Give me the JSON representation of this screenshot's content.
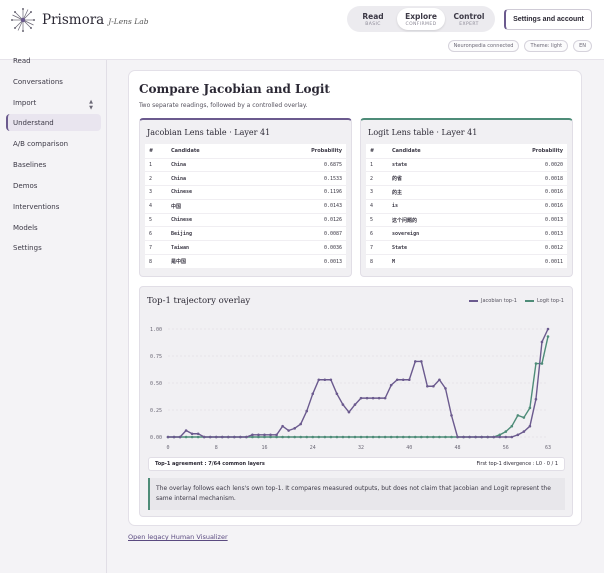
{
  "app": {
    "brand": "Prismora",
    "brand_sub": "J-Lens Lab"
  },
  "modes": [
    {
      "label": "Read",
      "sub": "BASIC",
      "active": false
    },
    {
      "label": "Explore",
      "sub": "CONFIRMED",
      "active": true
    },
    {
      "label": "Control",
      "sub": "EXPERT",
      "active": false
    }
  ],
  "settings_label": "Settings and account",
  "status_chips": [
    "Neuronpedia connected",
    "Theme: light",
    "EN"
  ],
  "sidebar": {
    "items": [
      {
        "label": "Read"
      },
      {
        "label": "Conversations"
      },
      {
        "label": "Import"
      },
      {
        "label": "Understand",
        "active": true
      },
      {
        "label": "A/B comparison"
      },
      {
        "label": "Baselines"
      },
      {
        "label": "Demos"
      },
      {
        "label": "Interventions"
      },
      {
        "label": "Models"
      },
      {
        "label": "Settings"
      }
    ]
  },
  "main": {
    "title": "Compare Jacobian and Logit",
    "subtitle": "Two separate readings, followed by a controlled overlay.",
    "jacobian_table": {
      "title": "Jacobian Lens table · Layer 41",
      "headers": [
        "#",
        "Candidate",
        "Probability"
      ],
      "rows": [
        [
          "1",
          "China",
          "0.6875"
        ],
        [
          "2",
          "China",
          "0.1533"
        ],
        [
          "3",
          "Chinese",
          "0.1196"
        ],
        [
          "4",
          "中国",
          "0.0143"
        ],
        [
          "5",
          "Chinese",
          "0.0126"
        ],
        [
          "6",
          "Beijing",
          "0.0087"
        ],
        [
          "7",
          "Taiwan",
          "0.0036"
        ],
        [
          "8",
          "是中国",
          "0.0013"
        ]
      ]
    },
    "logit_table": {
      "title": "Logit Lens table · Layer 41",
      "headers": [
        "#",
        "Candidate",
        "Probability"
      ],
      "rows": [
        [
          "1",
          "state",
          "0.0020"
        ],
        [
          "2",
          "的省",
          "0.0018"
        ],
        [
          "3",
          "的主",
          "0.0016"
        ],
        [
          "4",
          "is",
          "0.0016"
        ],
        [
          "5",
          "这个问题的",
          "0.0013"
        ],
        [
          "6",
          "sovereign",
          "0.0013"
        ],
        [
          "7",
          "State",
          "0.0012"
        ],
        [
          "8",
          "M",
          "0.0011"
        ]
      ]
    },
    "chart": {
      "title": "Top-1 trajectory overlay",
      "agreement": "Top-1 agreement : 7/64 common layers",
      "divergence": "First top-1 divergence : L0 · 0 / 1",
      "note": "The overlay follows each lens's own top-1. It compares measured outputs, but does not claim that Jacobian and Logit represent the same internal mechanism."
    },
    "legacy_link": "Open legacy Human Visualizer"
  },
  "chart_data": {
    "type": "line",
    "title": "Top-1 trajectory overlay",
    "x": [
      0,
      1,
      2,
      3,
      4,
      5,
      6,
      7,
      8,
      9,
      10,
      11,
      12,
      13,
      14,
      15,
      16,
      17,
      18,
      19,
      20,
      21,
      22,
      23,
      24,
      25,
      26,
      27,
      28,
      29,
      30,
      31,
      32,
      33,
      34,
      35,
      36,
      37,
      38,
      39,
      40,
      41,
      42,
      43,
      44,
      45,
      46,
      47,
      48,
      49,
      50,
      51,
      52,
      53,
      54,
      55,
      56,
      57,
      58,
      59,
      60,
      61,
      62,
      63
    ],
    "xticks": [
      0,
      8,
      16,
      24,
      32,
      40,
      48,
      56,
      63
    ],
    "yticks": [
      0.0,
      0.25,
      0.5,
      0.75,
      1.0
    ],
    "ytick_labels": [
      "0.00",
      "0.25",
      "0.50",
      "0.75",
      "1.00"
    ],
    "xlim": [
      0,
      63
    ],
    "ylim": [
      0,
      1
    ],
    "legend_position": "top-right",
    "series": [
      {
        "name": "Jacobian top-1",
        "color": "#6b5a8e",
        "values": [
          0.0,
          0.0,
          0.0,
          0.06,
          0.03,
          0.03,
          0.0,
          0.0,
          0.0,
          0.0,
          0.0,
          0.0,
          0.0,
          0.0,
          0.02,
          0.02,
          0.02,
          0.02,
          0.02,
          0.1,
          0.06,
          0.08,
          0.12,
          0.24,
          0.4,
          0.53,
          0.53,
          0.53,
          0.4,
          0.3,
          0.23,
          0.3,
          0.36,
          0.36,
          0.36,
          0.36,
          0.36,
          0.48,
          0.53,
          0.53,
          0.53,
          0.7,
          0.7,
          0.47,
          0.47,
          0.53,
          0.45,
          0.2,
          0.0,
          0.0,
          0.0,
          0.0,
          0.0,
          0.0,
          0.0,
          0.0,
          0.0,
          0.0,
          0.02,
          0.05,
          0.1,
          0.35,
          0.88,
          1.0
        ]
      },
      {
        "name": "Logit top-1",
        "color": "#4e8c78",
        "values": [
          0.0,
          0.0,
          0.0,
          0.0,
          0.0,
          0.0,
          0.0,
          0.0,
          0.0,
          0.0,
          0.0,
          0.0,
          0.0,
          0.0,
          0.0,
          0.0,
          0.0,
          0.0,
          0.0,
          0.0,
          0.0,
          0.0,
          0.0,
          0.0,
          0.0,
          0.0,
          0.0,
          0.0,
          0.0,
          0.0,
          0.0,
          0.0,
          0.0,
          0.0,
          0.0,
          0.0,
          0.0,
          0.0,
          0.0,
          0.0,
          0.0,
          0.0,
          0.0,
          0.0,
          0.0,
          0.0,
          0.0,
          0.0,
          0.0,
          0.0,
          0.0,
          0.0,
          0.0,
          0.0,
          0.0,
          0.02,
          0.05,
          0.1,
          0.2,
          0.18,
          0.27,
          0.68,
          0.68,
          0.93
        ]
      }
    ]
  }
}
